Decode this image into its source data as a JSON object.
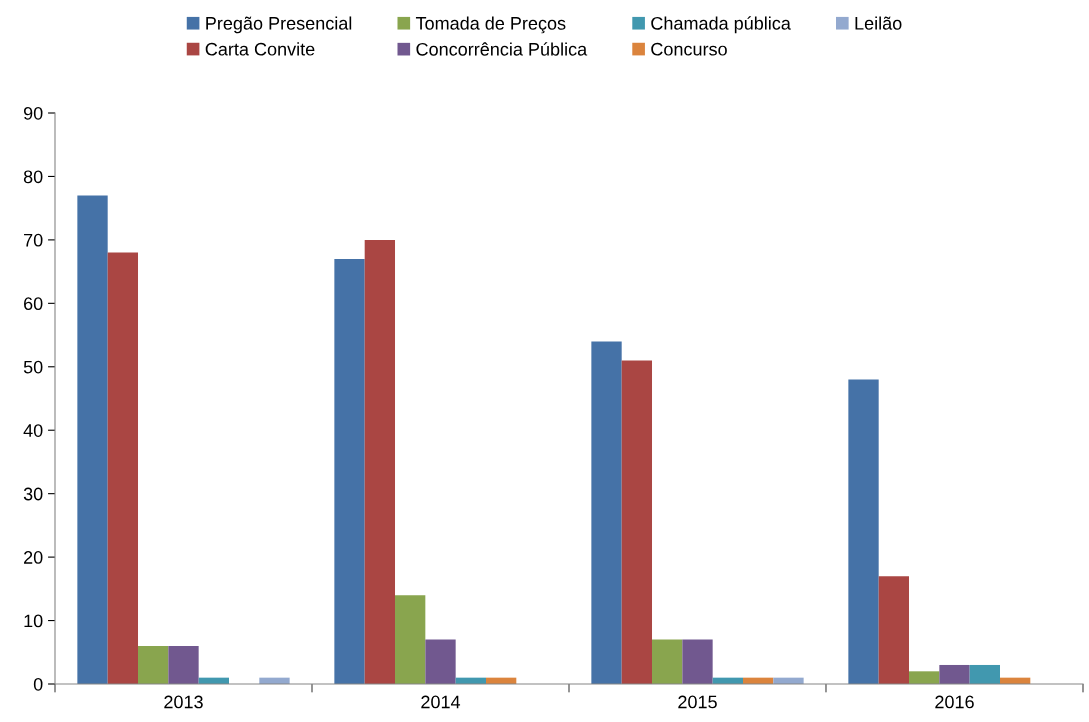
{
  "chart_data": {
    "type": "bar",
    "categories": [
      "2013",
      "2014",
      "2015",
      "2016"
    ],
    "series": [
      {
        "name": "Pregão Presencial",
        "color": "#4572a7",
        "values": [
          77,
          67,
          54,
          48
        ]
      },
      {
        "name": "Carta Convite",
        "color": "#aa4643",
        "values": [
          68,
          70,
          51,
          17
        ]
      },
      {
        "name": "Tomada de Preços",
        "color": "#89a54e",
        "values": [
          6,
          14,
          7,
          2
        ]
      },
      {
        "name": "Concorrência Pública",
        "color": "#71588f",
        "values": [
          6,
          7,
          7,
          3
        ]
      },
      {
        "name": "Chamada pública",
        "color": "#4198af",
        "values": [
          1,
          1,
          1,
          3
        ]
      },
      {
        "name": "Concurso",
        "color": "#db843d",
        "values": [
          0,
          1,
          1,
          1
        ]
      },
      {
        "name": "Leilão",
        "color": "#93a9cf",
        "values": [
          1,
          0,
          1,
          0
        ]
      }
    ],
    "ylim": [
      0,
      90
    ],
    "yticks": [
      0,
      10,
      20,
      30,
      40,
      50,
      60,
      70,
      80,
      90
    ],
    "grid": false,
    "legend": "top"
  }
}
